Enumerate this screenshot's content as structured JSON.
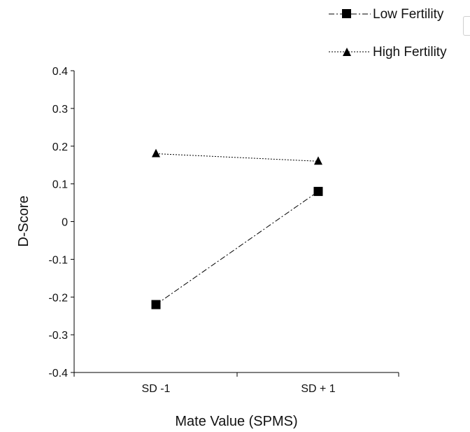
{
  "chart_data": {
    "type": "line",
    "title": "",
    "xlabel": "Mate Value (SPMS)",
    "ylabel": "D-Score",
    "categories": [
      "SD -1",
      "SD + 1"
    ],
    "ylim": [
      -0.4,
      0.4
    ],
    "yticks": [
      "0.4",
      "0.3",
      "0.2",
      "0.1",
      "0",
      "-0.1",
      "-0.2",
      "-0.3",
      "-0.4"
    ],
    "ytick_values": [
      0.4,
      0.3,
      0.2,
      0.1,
      0,
      -0.1,
      -0.2,
      -0.3,
      -0.4
    ],
    "grid": false,
    "legend_position": "top-right",
    "series": [
      {
        "name": "Low Fertility",
        "values": [
          -0.22,
          0.08
        ],
        "marker": "square",
        "line_style": "dash-dot",
        "color": "#000000"
      },
      {
        "name": "High Fertility",
        "values": [
          0.18,
          0.16
        ],
        "marker": "triangle",
        "line_style": "dotted",
        "color": "#000000"
      }
    ]
  }
}
